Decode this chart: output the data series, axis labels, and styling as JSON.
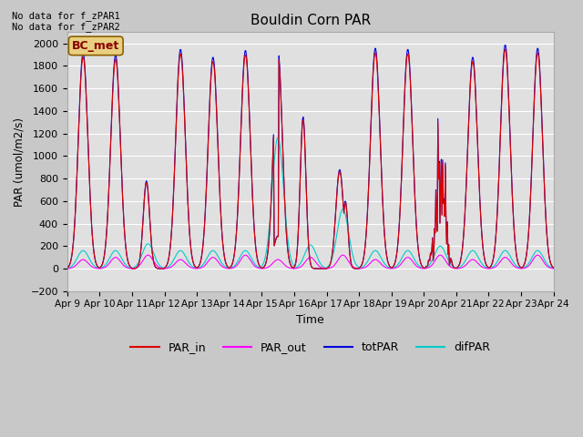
{
  "title": "Bouldin Corn PAR",
  "ylabel": "PAR (umol/m2/s)",
  "xlabel": "Time",
  "no_data_text": [
    "No data for f_zPAR1",
    "No data for f_zPAR2"
  ],
  "bc_met_label": "BC_met",
  "bc_met_facecolor": "#e8d080",
  "bc_met_edgecolor": "#8b6000",
  "bc_met_text_color": "#8b0000",
  "ylim": [
    -200,
    2100
  ],
  "yticks": [
    -200,
    0,
    200,
    400,
    600,
    800,
    1000,
    1200,
    1400,
    1600,
    1800,
    2000
  ],
  "n_days": 15,
  "date_start": 9,
  "color_PAR_in": "#dd0000",
  "color_PAR_out": "#ff00ff",
  "color_totPAR": "#0000dd",
  "color_difPAR": "#00cccc",
  "fig_facecolor": "#c8c8c8",
  "axes_facecolor": "#e0e0e0",
  "grid_color": "#ffffff"
}
